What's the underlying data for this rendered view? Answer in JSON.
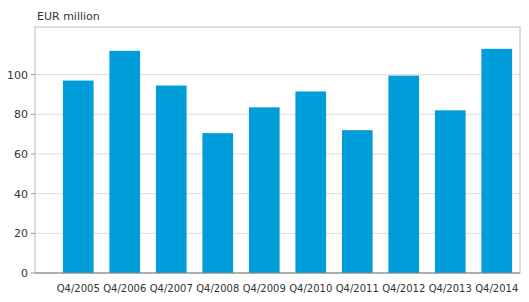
{
  "chart_data": {
    "type": "bar",
    "title": "EUR million",
    "categories": [
      "Q4/2005",
      "Q4/2006",
      "Q4/2007",
      "Q4/2008",
      "Q4/2009",
      "Q4/2010",
      "Q4/2011",
      "Q4/2012",
      "Q4/2013",
      "Q4/2014"
    ],
    "values": [
      97,
      112,
      94.5,
      70.5,
      83.5,
      91.5,
      72,
      99.5,
      82,
      113
    ],
    "color": "#009ddb",
    "ylim": [
      0,
      124
    ],
    "yticks": [
      0,
      20,
      40,
      60,
      80,
      100
    ],
    "grid": true
  }
}
